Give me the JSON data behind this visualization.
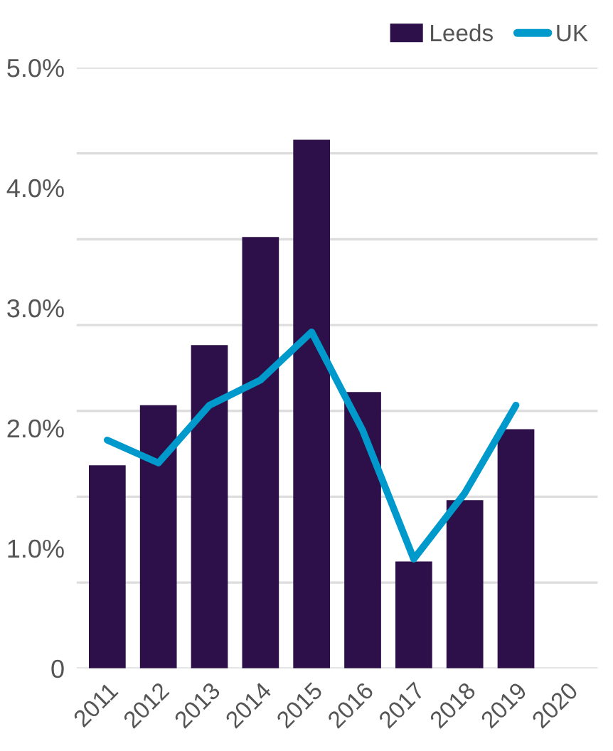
{
  "chart_data": {
    "type": "bar",
    "categories": [
      "2011",
      "2012",
      "2013",
      "2014",
      "2015",
      "2016",
      "2017",
      "2018",
      "2019",
      "2020"
    ],
    "series": [
      {
        "name": "Leeds",
        "color": "#2d1049",
        "values": [
          1.69,
          2.19,
          2.69,
          3.59,
          4.4,
          2.3,
          0.89,
          1.4,
          1.99,
          null
        ]
      },
      {
        "name": "UK",
        "type": "line",
        "color": "#0099cc",
        "values": [
          1.9,
          1.71,
          2.19,
          2.4,
          2.8,
          1.98,
          0.91,
          1.46,
          2.19,
          null
        ]
      }
    ],
    "ylim": [
      0,
      5
    ],
    "yticks": [
      {
        "value": 0,
        "label": "0"
      },
      {
        "value": 1,
        "label": "1.0%"
      },
      {
        "value": 2,
        "label": "2.0%"
      },
      {
        "value": 3,
        "label": "3.0%"
      },
      {
        "value": 4,
        "label": "4.0%"
      },
      {
        "value": 5,
        "label": "5.0%"
      },
      {
        "value": 0,
        "label": null
      },
      {
        "value": 0.714,
        "label": null
      },
      {
        "value": 1.429,
        "label": null
      },
      {
        "value": 2.143,
        "label": null
      },
      {
        "value": 2.857,
        "label": null
      },
      {
        "value": 3.571,
        "label": null
      },
      {
        "value": 4.286,
        "label": null
      },
      {
        "value": 5,
        "label": null
      }
    ],
    "grid": "y",
    "legend": "top right",
    "marker": "none",
    "line_style": "solid"
  }
}
